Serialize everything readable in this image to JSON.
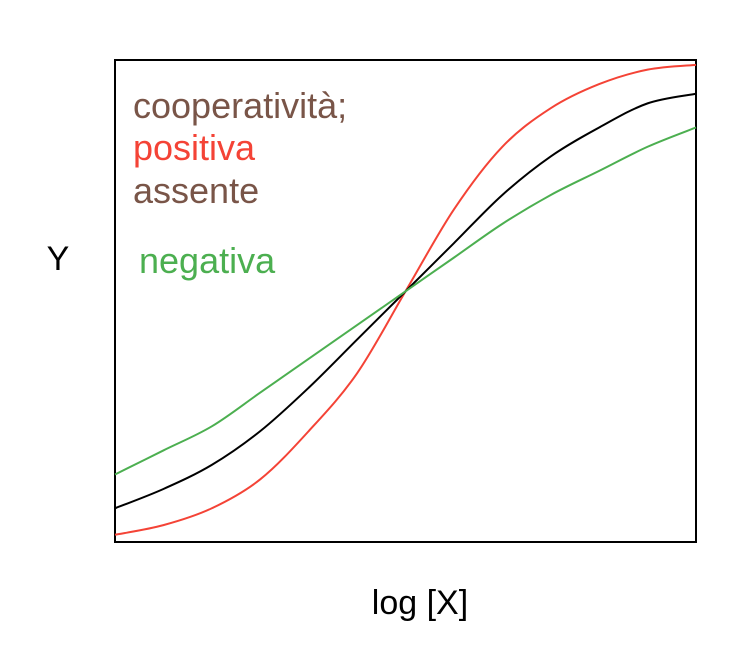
{
  "chart_data": {
    "type": "line",
    "xlabel": "log [X]",
    "ylabel": "Y",
    "xlim": [
      -3,
      3
    ],
    "ylim": [
      0,
      1
    ],
    "grid": false,
    "annotations": {
      "heading": "cooperatività;",
      "heading_color": "#795548",
      "labels": [
        {
          "text": "positiva",
          "color": "#f44336"
        },
        {
          "text": "assente",
          "color": "#795548"
        },
        {
          "text": "negativa",
          "color": "#4caf50"
        }
      ]
    },
    "series": [
      {
        "key": "positiva",
        "color": "#f44336",
        "x": [
          -3.0,
          -2.5,
          -2.0,
          -1.5,
          -1.0,
          -0.5,
          0.0,
          0.5,
          1.0,
          1.5,
          2.0,
          2.5,
          3.0
        ],
        "y": [
          0.015,
          0.035,
          0.07,
          0.13,
          0.23,
          0.35,
          0.52,
          0.69,
          0.82,
          0.9,
          0.95,
          0.98,
          0.99
        ]
      },
      {
        "key": "assente",
        "color": "#000000",
        "x": [
          -3.0,
          -2.5,
          -2.0,
          -1.5,
          -1.0,
          -0.5,
          0.0,
          0.5,
          1.0,
          1.5,
          2.0,
          2.5,
          3.0
        ],
        "y": [
          0.07,
          0.11,
          0.16,
          0.23,
          0.32,
          0.42,
          0.52,
          0.62,
          0.72,
          0.8,
          0.86,
          0.91,
          0.93
        ]
      },
      {
        "key": "negativa",
        "color": "#4caf50",
        "x": [
          -3.0,
          -2.5,
          -2.0,
          -1.5,
          -1.0,
          -0.5,
          0.0,
          0.5,
          1.0,
          1.5,
          2.0,
          2.5,
          3.0
        ],
        "y": [
          0.14,
          0.19,
          0.24,
          0.31,
          0.38,
          0.45,
          0.52,
          0.59,
          0.66,
          0.72,
          0.77,
          0.82,
          0.86
        ]
      }
    ]
  }
}
